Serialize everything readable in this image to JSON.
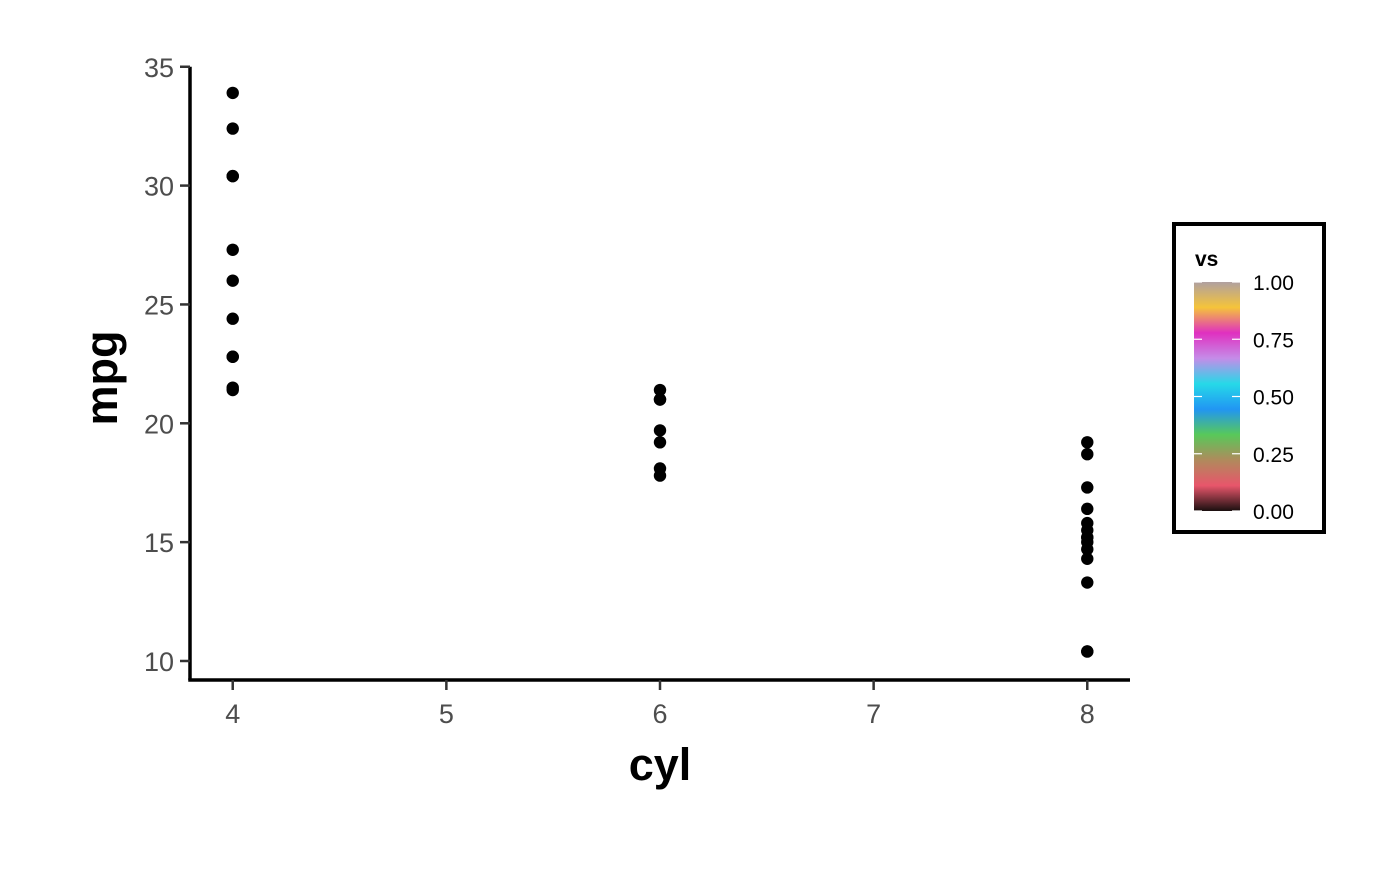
{
  "chart_data": {
    "type": "scatter",
    "title": "",
    "xlabel": "cyl",
    "ylabel": "mpg",
    "xlim": [
      3.8,
      8.2
    ],
    "ylim": [
      9.2,
      35.2
    ],
    "x_ticks": [
      4,
      5,
      6,
      7,
      8
    ],
    "y_ticks": [
      10,
      15,
      20,
      25,
      30,
      35
    ],
    "grid": false,
    "point_color": "#000000",
    "points": [
      {
        "x": 4,
        "y": 33.9
      },
      {
        "x": 4,
        "y": 32.4
      },
      {
        "x": 4,
        "y": 30.4
      },
      {
        "x": 4,
        "y": 30.4
      },
      {
        "x": 4,
        "y": 27.3
      },
      {
        "x": 4,
        "y": 26.0
      },
      {
        "x": 4,
        "y": 24.4
      },
      {
        "x": 4,
        "y": 22.8
      },
      {
        "x": 4,
        "y": 22.8
      },
      {
        "x": 4,
        "y": 21.5
      },
      {
        "x": 4,
        "y": 21.4
      },
      {
        "x": 6,
        "y": 21.4
      },
      {
        "x": 6,
        "y": 21.0
      },
      {
        "x": 6,
        "y": 21.0
      },
      {
        "x": 6,
        "y": 19.7
      },
      {
        "x": 6,
        "y": 19.2
      },
      {
        "x": 6,
        "y": 18.1
      },
      {
        "x": 6,
        "y": 17.8
      },
      {
        "x": 8,
        "y": 19.2
      },
      {
        "x": 8,
        "y": 18.7
      },
      {
        "x": 8,
        "y": 17.3
      },
      {
        "x": 8,
        "y": 16.4
      },
      {
        "x": 8,
        "y": 15.8
      },
      {
        "x": 8,
        "y": 15.5
      },
      {
        "x": 8,
        "y": 15.2
      },
      {
        "x": 8,
        "y": 15.2
      },
      {
        "x": 8,
        "y": 15.0
      },
      {
        "x": 8,
        "y": 14.7
      },
      {
        "x": 8,
        "y": 14.3
      },
      {
        "x": 8,
        "y": 13.3
      },
      {
        "x": 8,
        "y": 10.4
      },
      {
        "x": 8,
        "y": 10.4
      }
    ],
    "legend": {
      "title": "vs",
      "placement": "right",
      "range": [
        0,
        1
      ],
      "ticks": [
        "0.00",
        "0.25",
        "0.50",
        "0.75",
        "1.00"
      ],
      "gradient_colors": [
        "#1a0f0f",
        "#e8566b",
        "#b08a5c",
        "#58c85a",
        "#2196f3",
        "#26d9e8",
        "#c58ce8",
        "#e030c0",
        "#f5c43a",
        "#b0a0a0"
      ]
    }
  }
}
